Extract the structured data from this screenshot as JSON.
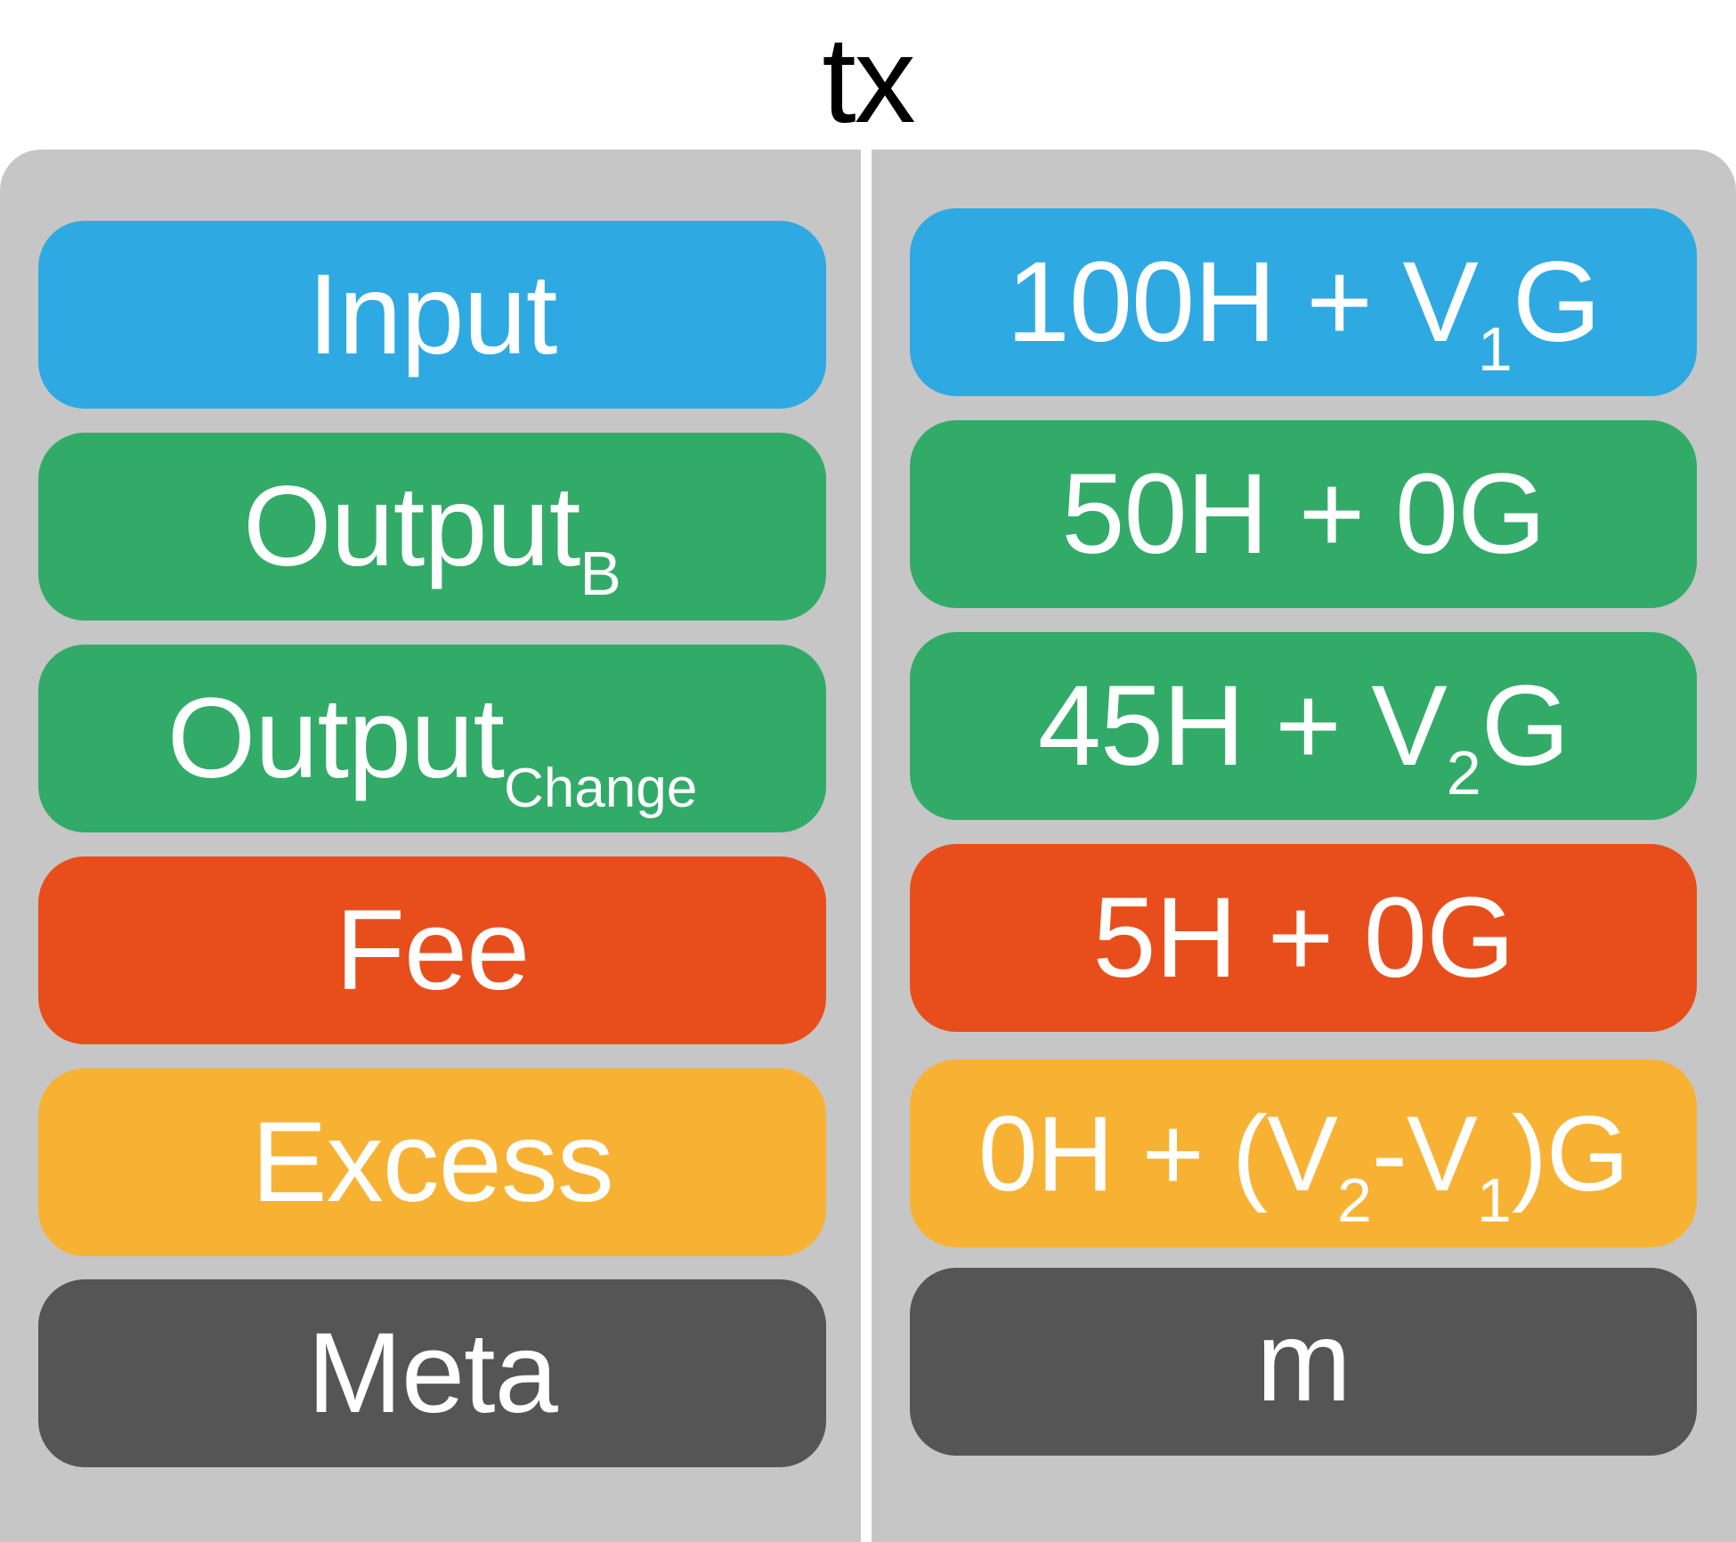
{
  "title": "tx",
  "colors": {
    "panel": "#c6c6c6",
    "input": "#2fa9e2",
    "output": "#32ab68",
    "fee": "#e84e1c",
    "excess": "#f7b234",
    "meta": "#555555"
  },
  "rows": [
    {
      "label": "Input",
      "label_sub": "",
      "value": "100H + V",
      "value_sub": "1",
      "value_tail": "G"
    },
    {
      "label": "Output",
      "label_sub": "B",
      "value": "50H + 0G",
      "value_sub": "",
      "value_tail": ""
    },
    {
      "label": "Output",
      "label_sub": "Change",
      "value": "45H + V",
      "value_sub": "2",
      "value_tail": "G"
    },
    {
      "label": "Fee",
      "label_sub": "",
      "value": "5H + 0G",
      "value_sub": "",
      "value_tail": ""
    },
    {
      "label": "Excess",
      "label_sub": "",
      "value": "0H + (V",
      "value_sub": "2",
      "value_mid": "-V",
      "value_sub2": "1",
      "value_tail": ")G"
    },
    {
      "label": "Meta",
      "label_sub": "",
      "value": "m",
      "value_sub": "",
      "value_tail": ""
    }
  ]
}
